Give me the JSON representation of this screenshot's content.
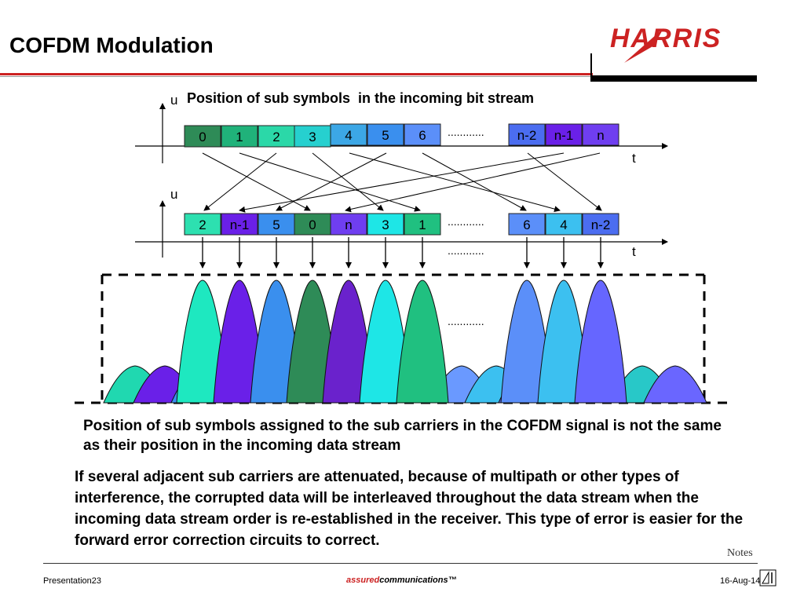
{
  "slide": {
    "title": "COFDM Modulation",
    "logo_text": "HARRIS"
  },
  "diagram": {
    "top_axis_label_u": "u",
    "top_axis_label_t": "t",
    "bottom_axis_label_u": "u",
    "bottom_axis_label_t": "t",
    "header": "Position of sub symbols  in the incoming bit stream",
    "ellipsis": "............",
    "top_row": [
      {
        "label": "0",
        "color": "#2e8b57"
      },
      {
        "label": "1",
        "color": "#20b27a"
      },
      {
        "label": "2",
        "color": "#2bd8a8"
      },
      {
        "label": "3",
        "color": "#26d0cf"
      },
      {
        "label": "4",
        "color": "#3ca7e6"
      },
      {
        "label": "5",
        "color": "#3a8fee"
      },
      {
        "label": "6",
        "color": "#5b8ff9"
      },
      {
        "label": "n-2",
        "color": "#4b6df0"
      },
      {
        "label": "n-1",
        "color": "#6a20e8"
      },
      {
        "label": "n",
        "color": "#6f3ef0"
      }
    ],
    "bottom_row": [
      {
        "label": "2",
        "color": "#2de0b0"
      },
      {
        "label": "n-1",
        "color": "#6a20e8"
      },
      {
        "label": "5",
        "color": "#3a8fee"
      },
      {
        "label": "0",
        "color": "#2e8b57"
      },
      {
        "label": "n",
        "color": "#6f3ef0"
      },
      {
        "label": "3",
        "color": "#1ee6e6"
      },
      {
        "label": "1",
        "color": "#20c080"
      },
      {
        "label": "6",
        "color": "#5b8ff9"
      },
      {
        "label": "4",
        "color": "#3cc0f0"
      },
      {
        "label": "n-2",
        "color": "#4b6df0"
      }
    ],
    "carrier_colors": [
      "#1ee8c0",
      "#6a20e8",
      "#3a8fee",
      "#2e8b57",
      "#6a22cc",
      "#1ee6e6",
      "#20c080",
      "#5b8ff9",
      "#3cc0f0",
      "#6666ff"
    ],
    "small_peak_colors": [
      "#20d8b0",
      "#6a20e8",
      "#3a8fee",
      "#2e8b57",
      "#6a22cc",
      "#1ee6e6",
      "#20c080",
      "#6a99ff",
      "#3cc0f0",
      "#5b6df0",
      "#28c8c8",
      "#6a66ff"
    ]
  },
  "caption1": "Position of sub symbols assigned to the sub carriers in the COFDM signal is not the same as their position in the incoming data stream",
  "caption2": "If several adjacent sub carriers are attenuated, because of multipath or other types of interference, the corrupted data will be interleaved throughout the data stream when the incoming data stream order is re-established in the receiver. This type of error is easier for the forward error correction circuits to correct.",
  "footer": {
    "notes": "Notes",
    "presentation": "Presentation23",
    "assured_a": "assured",
    "assured_b": "communications",
    "tm": "™",
    "date": "16-Aug-14"
  }
}
